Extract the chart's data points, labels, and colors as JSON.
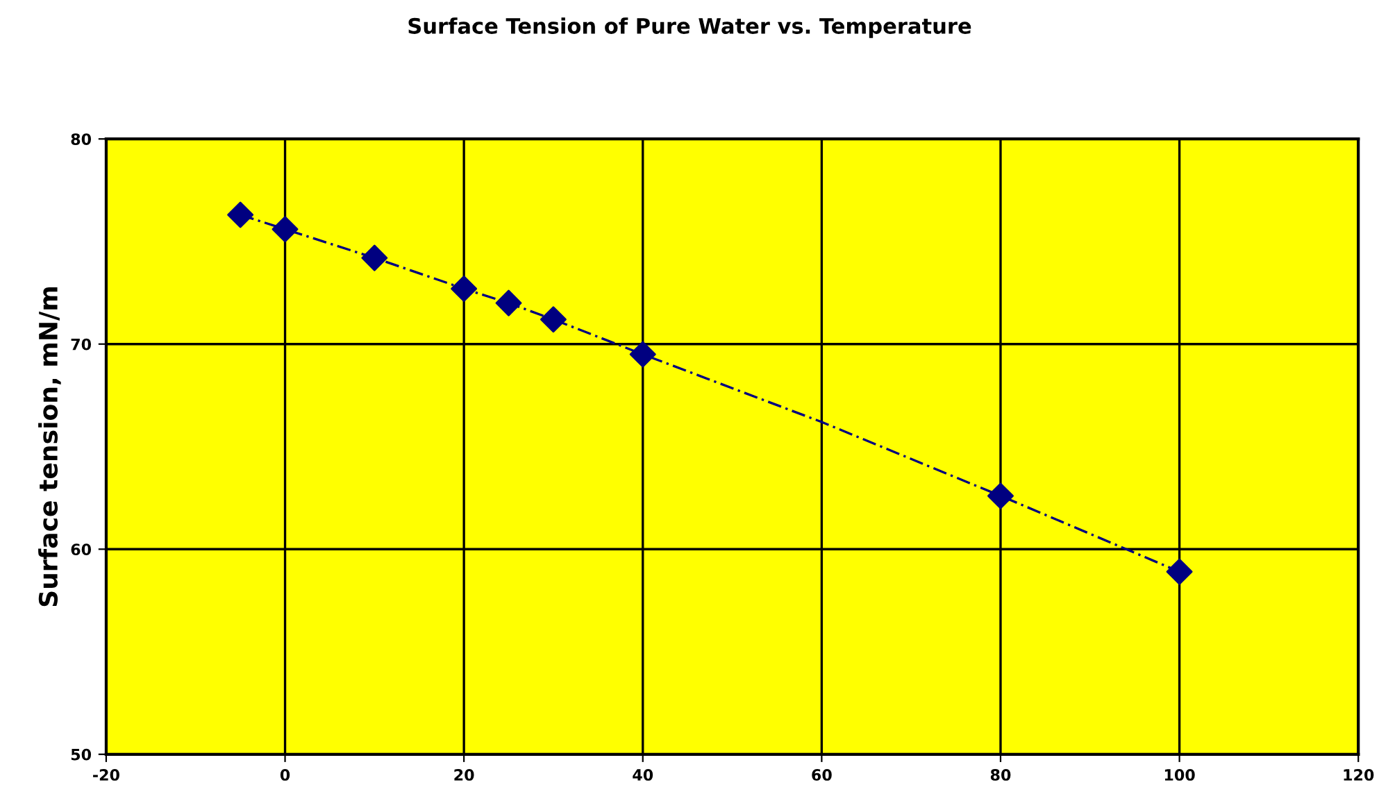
{
  "chart_data": {
    "type": "line",
    "title": "Surface Tension of Pure Water vs. Temperature",
    "ylabel": "Surface tension, mN/m",
    "series": [
      {
        "type": "line",
        "color": "#000080",
        "line_style": "dashed",
        "marker": "none",
        "x": [
          -5,
          0,
          10,
          20,
          25,
          30,
          40,
          60,
          80,
          100
        ],
        "values": [
          76.3,
          75.6,
          74.2,
          72.7,
          72.0,
          71.2,
          69.5,
          66.2,
          62.6,
          58.9
        ]
      },
      {
        "type": "scatter",
        "color": "#000080",
        "marker": "diamond",
        "x": [
          -5,
          0,
          10,
          20,
          25,
          30,
          40,
          80,
          100
        ],
        "values": [
          76.3,
          75.6,
          74.2,
          72.7,
          72.0,
          71.2,
          69.5,
          62.6,
          58.9
        ]
      }
    ],
    "xlim": [
      -20,
      120
    ],
    "xticks": [
      -20,
      0,
      20,
      40,
      60,
      80,
      100,
      120
    ],
    "ylim": [
      50,
      80
    ],
    "yticks": [
      50,
      60,
      70,
      80
    ],
    "grid": true
  }
}
